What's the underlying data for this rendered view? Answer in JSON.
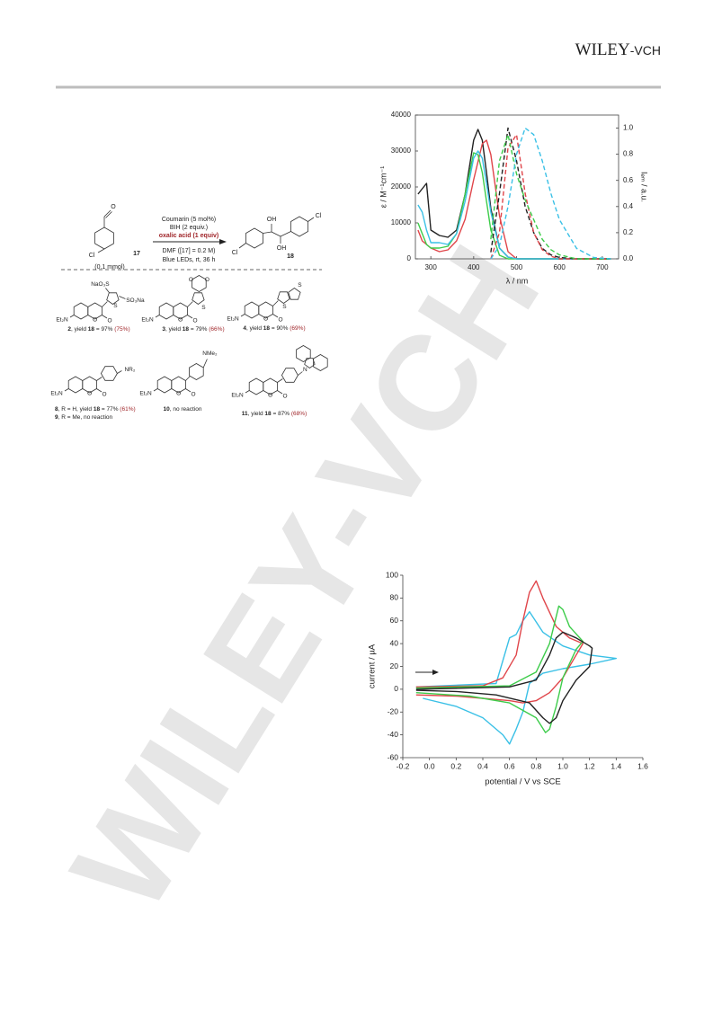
{
  "header": {
    "publisher": "WILEY",
    "publisher_suffix": "-VCH"
  },
  "watermark": "WILEY-VCH",
  "scheme": {
    "substrate": {
      "number": "17",
      "amount": "(0.1 mmol)",
      "atoms": [
        "O",
        "Cl"
      ]
    },
    "reagents": [
      "Coumarin (5 mol%)",
      "BIH (2 equiv.)",
      "oxalic acid (1 equiv)"
    ],
    "conditions": [
      "DMF ([17] = 0.2 M)",
      "Blue LEDs, rt, 36 h"
    ],
    "product": {
      "number": "18",
      "atoms": [
        "OH",
        "OH",
        "Cl",
        "Cl"
      ]
    },
    "catalysts": [
      {
        "atoms": [
          "Et₂N",
          "O",
          "O",
          "S",
          "NaO₃S",
          "SO₃Na"
        ],
        "captions": [
          {
            "number": "2",
            "text": ", yield ",
            "product": "18",
            "yield": " = 97% ",
            "isolated": "(75%)"
          }
        ]
      },
      {
        "atoms": [
          "Et₂N",
          "O",
          "O",
          "S",
          "O",
          "O"
        ],
        "captions": [
          {
            "number": "3",
            "text": ", yield ",
            "product": "18",
            "yield": " = 79% ",
            "isolated": "(66%)"
          }
        ]
      },
      {
        "atoms": [
          "Et₂N",
          "O",
          "O",
          "S",
          "S"
        ],
        "captions": [
          {
            "number": "4",
            "text": ", yield ",
            "product": "18",
            "yield": " = 90% ",
            "isolated": "(69%)"
          }
        ]
      },
      {
        "atoms": [
          "Et₂N",
          "O",
          "O",
          "NR₂"
        ],
        "captions": [
          {
            "number": "8",
            "text": ", R = H, yield ",
            "product": "18",
            "yield": " = 77% ",
            "isolated": "(61%)"
          },
          {
            "number": "9",
            "text": ", R = Me, no reaction"
          }
        ]
      },
      {
        "atoms": [
          "Et₂N",
          "O",
          "O",
          "NMe₂"
        ],
        "captions": [
          {
            "number": "10",
            "text": ", no reaction"
          }
        ]
      },
      {
        "atoms": [
          "Et₂N",
          "O",
          "O",
          "N"
        ],
        "captions": [
          {
            "number": "11",
            "text": ", yield ",
            "product": "18",
            "yield": " = 87% ",
            "isolated": "(68%)"
          }
        ]
      }
    ]
  },
  "chart_data": [
    {
      "type": "line",
      "xlabel": "λ / nm",
      "ylabel": "ε / M⁻¹cm⁻¹",
      "y2label": "Iₑₘ / a.u.",
      "x": [
        270,
        280,
        290,
        300,
        320,
        340,
        360,
        380,
        400,
        410,
        420,
        430,
        440,
        460,
        480,
        500,
        520,
        540,
        560,
        580,
        600,
        640,
        680,
        720
      ],
      "xlim": [
        264,
        738
      ],
      "xticks": [
        300,
        400,
        500,
        600,
        700
      ],
      "ylim": [
        0,
        40000
      ],
      "yticks": [
        0,
        10000,
        20000,
        30000,
        40000
      ],
      "y2lim": [
        0,
        1.1
      ],
      "y2ticks": [
        {
          "value": 0,
          "label": "0.0"
        },
        0.2,
        0.4,
        0.6,
        0.8,
        {
          "value": 1,
          "label": "1.0"
        }
      ],
      "series": [
        {
          "color": "#222222",
          "style": "solid",
          "values": [
            18000,
            19500,
            21000,
            8000,
            6500,
            6000,
            8000,
            18000,
            33000,
            36000,
            33000,
            24000,
            14000,
            3000,
            500,
            0,
            0,
            0,
            0,
            0,
            0,
            0,
            0,
            0
          ]
        },
        {
          "color": "#e0454a",
          "style": "solid",
          "values": [
            8000,
            5000,
            4000,
            3000,
            2000,
            2500,
            5000,
            11000,
            22000,
            27000,
            32000,
            33000,
            29000,
            12000,
            2000,
            0,
            0,
            0,
            0,
            0,
            0,
            0,
            0,
            0
          ]
        },
        {
          "color": "#3dcc4a",
          "style": "solid",
          "values": [
            10000,
            7000,
            4000,
            3000,
            3000,
            3500,
            7000,
            18000,
            29500,
            29000,
            24000,
            16000,
            8000,
            1000,
            0,
            0,
            0,
            0,
            0,
            0,
            0,
            0,
            0,
            0
          ]
        },
        {
          "color": "#3ac0e6",
          "style": "solid",
          "values": [
            15000,
            13000,
            8000,
            4500,
            4500,
            4000,
            7000,
            16000,
            28000,
            30000,
            28000,
            21000,
            13000,
            3000,
            500,
            0,
            0,
            0,
            0,
            0,
            0,
            0,
            0,
            0
          ]
        },
        {
          "color": "#222222",
          "style": "dashed",
          "axis": "y2",
          "values": [
            null,
            null,
            null,
            null,
            null,
            null,
            null,
            null,
            null,
            null,
            null,
            null,
            0.05,
            0.5,
            1.0,
            0.75,
            0.4,
            0.2,
            0.08,
            0.03,
            0.01,
            0,
            0,
            0
          ]
        },
        {
          "color": "#e0454a",
          "style": "dashed",
          "axis": "y2",
          "values": [
            null,
            null,
            null,
            null,
            null,
            null,
            null,
            null,
            null,
            null,
            null,
            null,
            0,
            0.2,
            0.85,
            0.95,
            0.5,
            0.2,
            0.07,
            0.02,
            0,
            0,
            0,
            0
          ]
        },
        {
          "color": "#3dcc4a",
          "style": "dashed",
          "axis": "y2",
          "values": [
            null,
            null,
            null,
            null,
            null,
            null,
            null,
            null,
            null,
            null,
            null,
            null,
            0.15,
            0.75,
            0.95,
            0.65,
            0.45,
            0.3,
            0.15,
            0.07,
            0.03,
            0,
            0,
            0
          ]
        },
        {
          "color": "#3ac0e6",
          "style": "dashed",
          "axis": "y2",
          "values": [
            null,
            null,
            null,
            null,
            null,
            null,
            null,
            null,
            null,
            null,
            null,
            null,
            0,
            0.1,
            0.4,
            0.8,
            1.0,
            0.95,
            0.75,
            0.5,
            0.3,
            0.08,
            0.01,
            0
          ]
        }
      ]
    },
    {
      "type": "line",
      "xlabel": "potential / V vs SCE",
      "ylabel": "current / µA",
      "xlim": [
        -0.2,
        1.6
      ],
      "xticks": [
        -0.2,
        {
          "value": 0,
          "label": "0.0"
        },
        0.2,
        0.4,
        0.6,
        0.8,
        {
          "value": 1,
          "label": "1.0"
        },
        1.2,
        1.4,
        1.6
      ],
      "ylim": [
        -60,
        100
      ],
      "yticks": [
        -60,
        -40,
        -20,
        0,
        20,
        40,
        60,
        80,
        100
      ],
      "series": [
        {
          "color": "#3ac0e6",
          "style": "solid",
          "x": [
            -0.1,
            0.5,
            0.6,
            0.65,
            0.7,
            0.75,
            0.85,
            1.0,
            1.2,
            1.4,
            1.2,
            1.0,
            0.85,
            0.75,
            0.7,
            0.65,
            0.6,
            0.55,
            0.4,
            0.2,
            -0.05
          ],
          "values": [
            2,
            5,
            45,
            48,
            60,
            68,
            50,
            38,
            30,
            27,
            22,
            18,
            14,
            5,
            -20,
            -35,
            -48,
            -40,
            -25,
            -15,
            -8
          ]
        },
        {
          "color": "#e0454a",
          "style": "solid",
          "x": [
            -0.1,
            0.4,
            0.55,
            0.65,
            0.7,
            0.75,
            0.8,
            0.85,
            0.95,
            1.05,
            1.15,
            1.1,
            1.0,
            0.9,
            0.8,
            0.7,
            0.6,
            0.4,
            0.2,
            -0.1
          ],
          "values": [
            2,
            3,
            10,
            30,
            60,
            85,
            95,
            80,
            55,
            45,
            40,
            30,
            10,
            -3,
            -10,
            -12,
            -10,
            -8,
            -6,
            -5
          ]
        },
        {
          "color": "#3dcc4a",
          "style": "solid",
          "x": [
            -0.1,
            0.6,
            0.8,
            0.9,
            0.97,
            1.0,
            1.05,
            1.15,
            1.1,
            1.0,
            0.95,
            0.9,
            0.87,
            0.8,
            0.6,
            0.3,
            -0.1
          ],
          "values": [
            1,
            3,
            15,
            40,
            73,
            70,
            55,
            42,
            35,
            10,
            -15,
            -35,
            -38,
            -25,
            -12,
            -6,
            -3
          ]
        },
        {
          "color": "#222222",
          "style": "solid",
          "x": [
            -0.1,
            0.6,
            0.8,
            0.9,
            0.95,
            1.0,
            1.1,
            1.2,
            1.22,
            1.2,
            1.1,
            1.0,
            0.95,
            0.9,
            0.85,
            0.75,
            0.5,
            0.2,
            -0.1
          ],
          "values": [
            0,
            2,
            8,
            30,
            45,
            50,
            45,
            38,
            36,
            20,
            8,
            -10,
            -25,
            -30,
            -25,
            -12,
            -5,
            -2,
            -1
          ]
        }
      ]
    }
  ]
}
